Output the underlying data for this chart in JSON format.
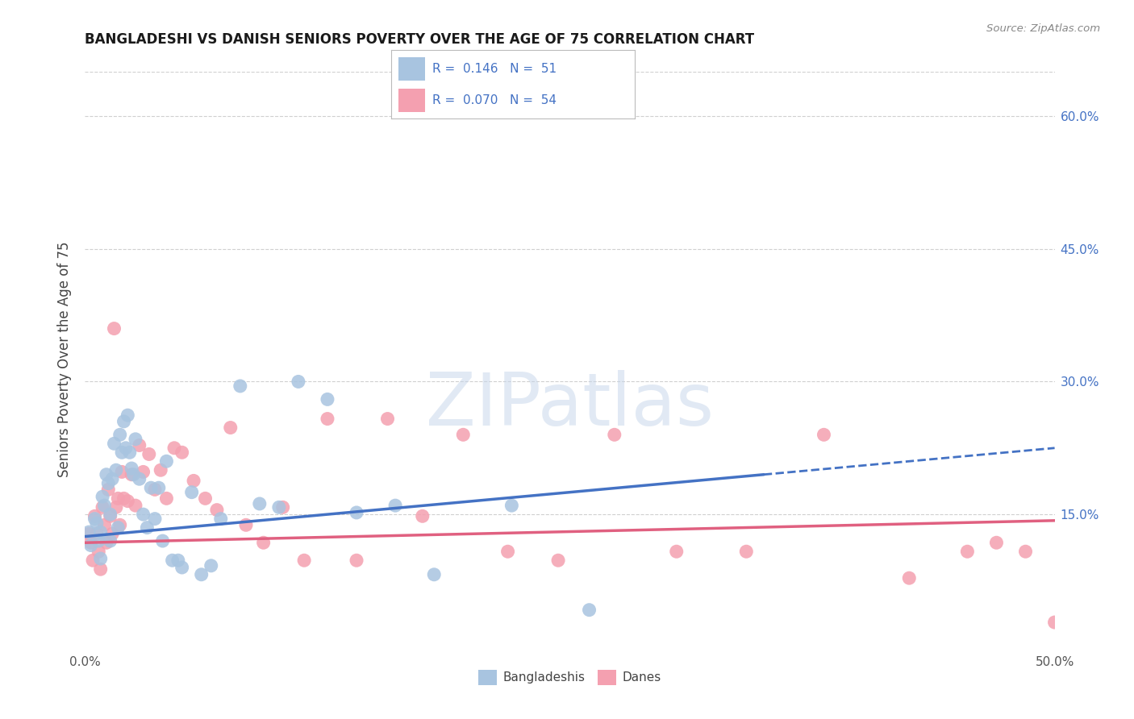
{
  "title": "BANGLADESHI VS DANISH SENIORS POVERTY OVER THE AGE OF 75 CORRELATION CHART",
  "source": "Source: ZipAtlas.com",
  "xlim": [
    0.0,
    0.5
  ],
  "ylim": [
    0.0,
    0.65
  ],
  "xlabel_ticks": [
    0.0,
    0.5
  ],
  "xlabel_tick_labels": [
    "0.0%",
    "50.0%"
  ],
  "ylabel_ticks": [
    0.0,
    0.15,
    0.3,
    0.45,
    0.6
  ],
  "right_ylabel_labels": [
    "",
    "15.0%",
    "30.0%",
    "45.0%",
    "60.0%"
  ],
  "R_bangladeshi": 0.146,
  "N_bangladeshi": 51,
  "R_danish": 0.07,
  "N_danish": 54,
  "bangladeshi_color": "#a8c4e0",
  "danish_color": "#f4a0b0",
  "bangladeshi_line_color": "#4472c4",
  "danish_line_color": "#e06080",
  "legend_text_color": "#4472c4",
  "background_color": "#ffffff",
  "grid_color": "#d0d0d0",
  "bangladeshi_x": [
    0.002,
    0.003,
    0.005,
    0.006,
    0.007,
    0.008,
    0.008,
    0.009,
    0.01,
    0.011,
    0.012,
    0.013,
    0.013,
    0.014,
    0.015,
    0.016,
    0.017,
    0.018,
    0.019,
    0.02,
    0.021,
    0.022,
    0.023,
    0.024,
    0.025,
    0.026,
    0.028,
    0.03,
    0.032,
    0.034,
    0.036,
    0.038,
    0.04,
    0.042,
    0.045,
    0.048,
    0.05,
    0.055,
    0.06,
    0.065,
    0.07,
    0.08,
    0.09,
    0.1,
    0.11,
    0.125,
    0.14,
    0.16,
    0.18,
    0.22,
    0.26
  ],
  "bangladeshi_y": [
    0.13,
    0.115,
    0.145,
    0.14,
    0.12,
    0.1,
    0.13,
    0.17,
    0.16,
    0.195,
    0.185,
    0.15,
    0.12,
    0.19,
    0.23,
    0.2,
    0.135,
    0.24,
    0.22,
    0.255,
    0.225,
    0.262,
    0.22,
    0.202,
    0.195,
    0.235,
    0.19,
    0.15,
    0.135,
    0.18,
    0.145,
    0.18,
    0.12,
    0.21,
    0.098,
    0.098,
    0.09,
    0.175,
    0.082,
    0.092,
    0.145,
    0.295,
    0.162,
    0.158,
    0.3,
    0.28,
    0.152,
    0.16,
    0.082,
    0.16,
    0.042
  ],
  "danish_x": [
    0.002,
    0.003,
    0.004,
    0.005,
    0.006,
    0.007,
    0.008,
    0.009,
    0.01,
    0.011,
    0.012,
    0.013,
    0.014,
    0.015,
    0.016,
    0.017,
    0.018,
    0.019,
    0.02,
    0.022,
    0.024,
    0.026,
    0.028,
    0.03,
    0.033,
    0.036,
    0.039,
    0.042,
    0.046,
    0.05,
    0.056,
    0.062,
    0.068,
    0.075,
    0.083,
    0.092,
    0.102,
    0.113,
    0.125,
    0.14,
    0.156,
    0.174,
    0.195,
    0.218,
    0.244,
    0.273,
    0.305,
    0.341,
    0.381,
    0.425,
    0.455,
    0.47,
    0.485,
    0.5
  ],
  "danish_y": [
    0.128,
    0.118,
    0.098,
    0.148,
    0.128,
    0.108,
    0.088,
    0.158,
    0.138,
    0.118,
    0.178,
    0.148,
    0.128,
    0.36,
    0.158,
    0.168,
    0.138,
    0.198,
    0.168,
    0.165,
    0.195,
    0.16,
    0.228,
    0.198,
    0.218,
    0.178,
    0.2,
    0.168,
    0.225,
    0.22,
    0.188,
    0.168,
    0.155,
    0.248,
    0.138,
    0.118,
    0.158,
    0.098,
    0.258,
    0.098,
    0.258,
    0.148,
    0.24,
    0.108,
    0.098,
    0.24,
    0.108,
    0.108,
    0.24,
    0.078,
    0.108,
    0.118,
    0.108,
    0.028
  ],
  "watermark_text": "ZIPatlas"
}
